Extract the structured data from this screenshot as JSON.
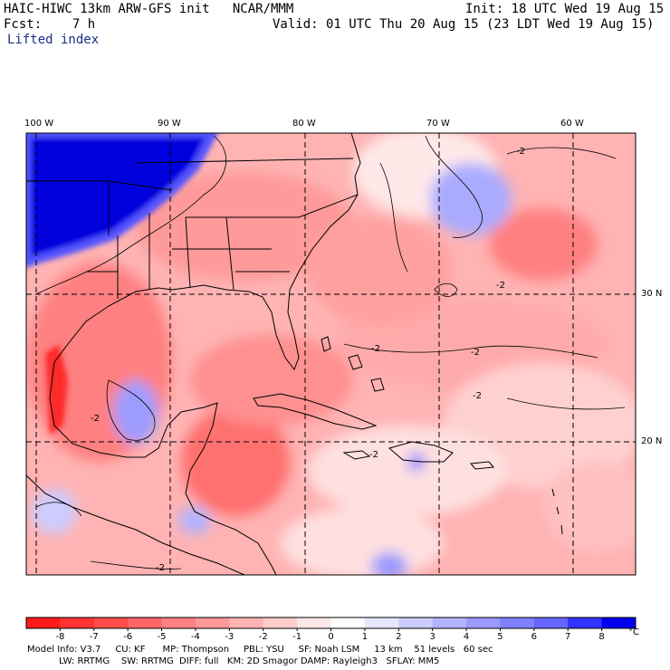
{
  "header": {
    "model_line": "HAIC-HIWC 13km ARW-GFS init   NCAR/MMM",
    "init_line": "Init: 18 UTC Wed 19 Aug 15",
    "fcst_line": "Fcst:    7 h",
    "valid_line": "Valid: 01 UTC Thu 20 Aug 15 (23 LDT Wed 19 Aug 15)",
    "field_name": "Lifted index"
  },
  "map": {
    "lon_labels": [
      "100 W",
      "90 W",
      "80 W",
      "70 W",
      "60 W"
    ],
    "lat_labels": [
      "30 N",
      "20 N"
    ],
    "contour_labels": [
      "-2",
      "-2",
      "-2",
      "-2",
      "-2",
      "-2",
      "-2",
      "-2"
    ]
  },
  "colorbar": {
    "ticks": [
      "-8",
      "-7",
      "-6",
      "-5",
      "-4",
      "-3",
      "-2",
      "-1",
      "0",
      "1",
      "2",
      "3",
      "4",
      "5",
      "6",
      "7",
      "8"
    ],
    "unit": "°C",
    "colors": [
      "#ff1a1a",
      "#ff3333",
      "#ff4d4d",
      "#ff6666",
      "#ff8080",
      "#ff9999",
      "#ffb3b3",
      "#ffcccc",
      "#ffe6e6",
      "#ffffff",
      "#e6e6ff",
      "#ccccff",
      "#b3b3ff",
      "#9999ff",
      "#8080ff",
      "#6666ff",
      "#3333ff",
      "#0000ee"
    ]
  },
  "footer": {
    "line1": "Model Info: V3.7     CU: KF      MP: Thompson     PBL: YSU     SF: Noah LSM     13 km    51 levels   60 sec",
    "line2": "           LW: RRTMG    SW: RRTMG  DIFF: full   KM: 2D Smagor DAMP: Rayleigh3   SFLAY: MM5"
  }
}
